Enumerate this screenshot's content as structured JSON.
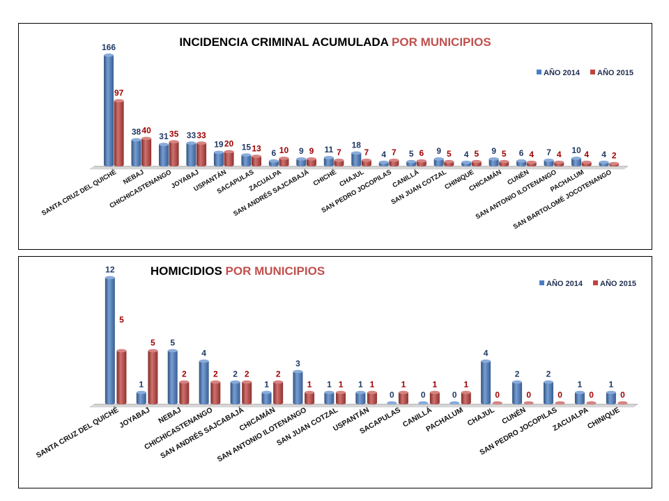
{
  "colors": {
    "series_2014": "#4a7dc4",
    "series_2015": "#c0423e",
    "title_accent": "#c0504d",
    "title_main": "#000000"
  },
  "chart_data": [
    {
      "type": "bar",
      "title_main": "INCIDENCIA CRIMINAL ACUMULADA",
      "title_accent": "POR MUNICIPIOS",
      "legend_position": "top-right",
      "grid": false,
      "categories": [
        "SANTA CRUZ DEL QUICHÉ",
        "NEBAJ",
        "CHICHICASTENANGO",
        "JOYABAJ",
        "USPANTÁN",
        "SACAPULAS",
        "ZACUALPA",
        "SAN ANDRÉS SAJCABAJÁ",
        "CHICHÉ",
        "CHAJUL",
        "SAN PEDRO JOCOPILAS",
        "CANILLÁ",
        "SAN JUAN COTZAL",
        "CHINIQUE",
        "CHICAMÁN",
        "CUNÉN",
        "SAN ANTONIO ILOTENANGO",
        "PACHALUM",
        "SAN BARTOLOMÉ JOCOTENANGO"
      ],
      "series": [
        {
          "name": "AÑO 2014",
          "values": [
            166,
            38,
            31,
            33,
            19,
            15,
            6,
            9,
            11,
            18,
            4,
            5,
            9,
            4,
            9,
            6,
            7,
            10,
            4
          ]
        },
        {
          "name": "AÑO 2015",
          "values": [
            97,
            40,
            35,
            33,
            20,
            13,
            10,
            9,
            7,
            7,
            7,
            6,
            5,
            5,
            5,
            4,
            4,
            4,
            2
          ]
        }
      ],
      "ylim": [
        0,
        166
      ]
    },
    {
      "type": "bar",
      "title_main": "HOMICIDIOS",
      "title_accent": "POR MUNICIPIOS",
      "legend_position": "top-right",
      "grid": false,
      "categories": [
        "SANTA CRUZ DEL QUICHÉ",
        "JOYABAJ",
        "NEBAJ",
        "CHICHICASTENANGO",
        "SAN ANDRÉS SAJCABAJÁ",
        "CHICAMÁN",
        "SAN ANTONIO ILOTENANGO",
        "SAN JUAN COTZAL",
        "USPANTÁN",
        "SACAPULAS",
        "CANILLÁ",
        "PACHALUM",
        "CHAJUL",
        "CUNÉN",
        "SAN PEDRO JOCOPILAS",
        "ZACUALPA",
        "CHINIQUE"
      ],
      "series": [
        {
          "name": "AÑO 2014",
          "values": [
            12,
            1,
            5,
            4,
            2,
            1,
            3,
            1,
            1,
            0,
            0,
            0,
            4,
            2,
            2,
            1,
            1
          ]
        },
        {
          "name": "AÑO 2015",
          "values": [
            5,
            5,
            2,
            2,
            2,
            2,
            1,
            1,
            1,
            1,
            1,
            1,
            0,
            0,
            0,
            0,
            0
          ]
        }
      ],
      "ylim": [
        0,
        12
      ]
    }
  ]
}
